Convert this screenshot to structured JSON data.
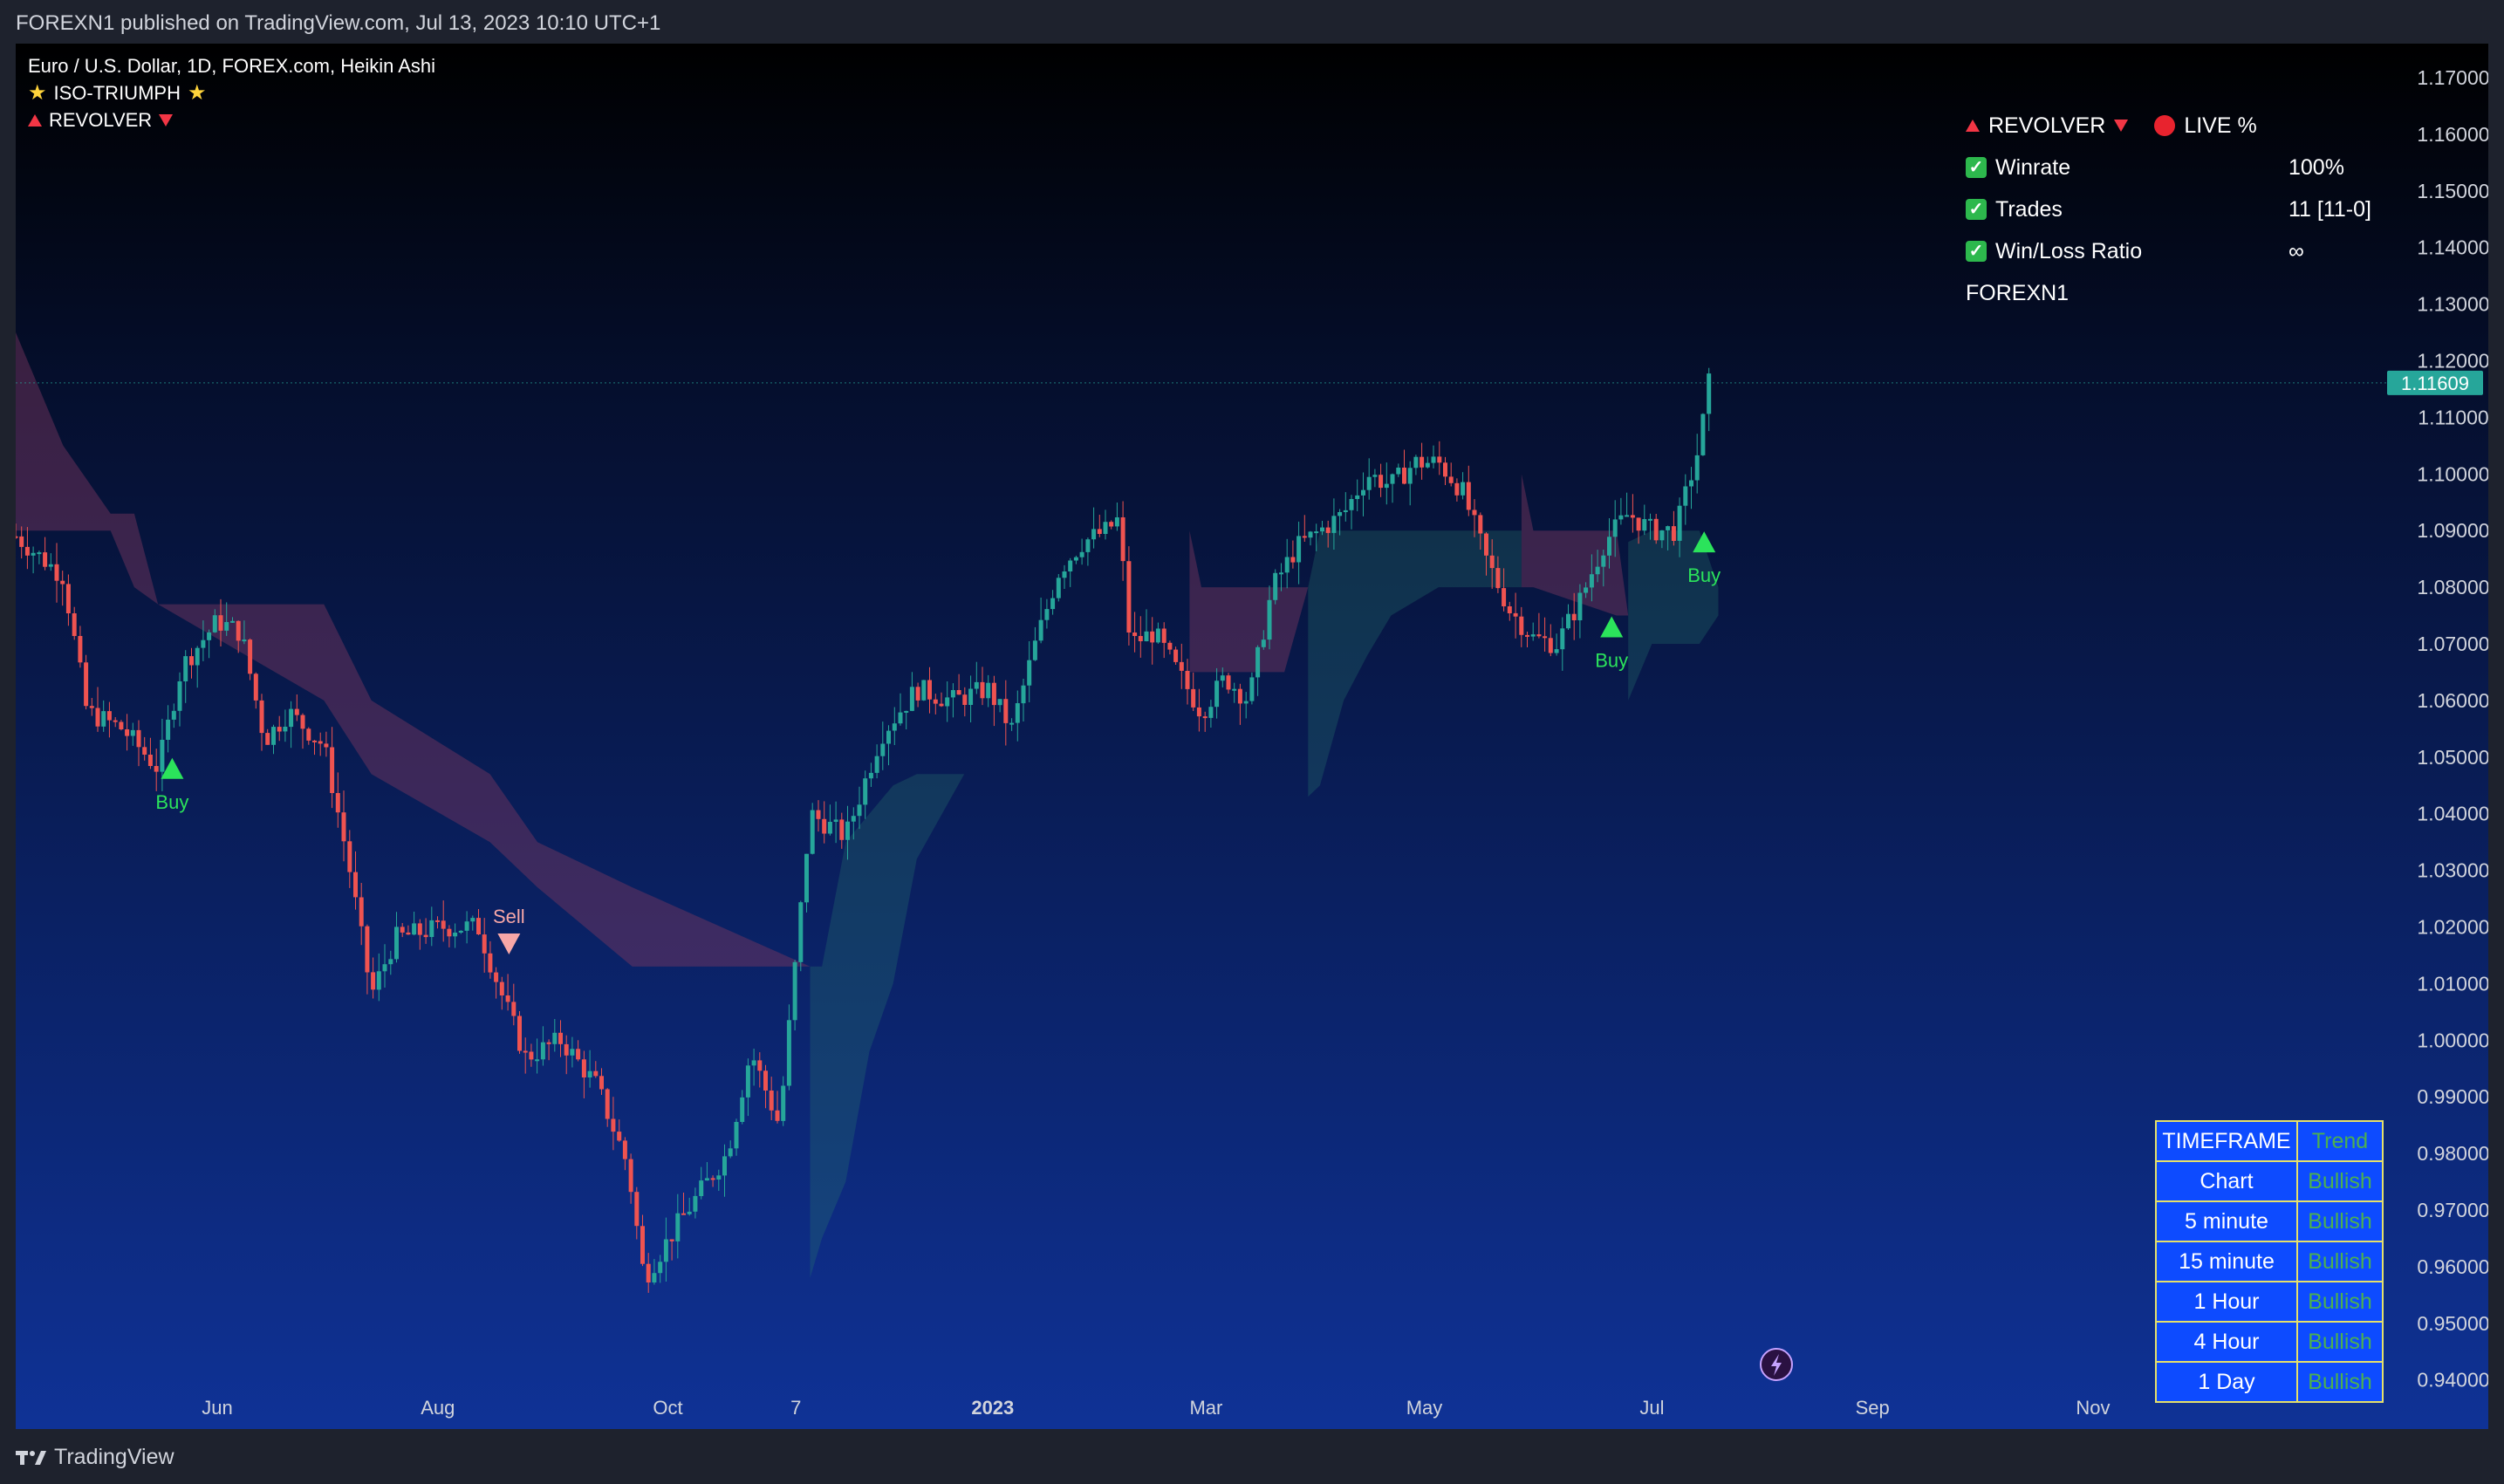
{
  "header": {
    "published": "FOREXN1 published on TradingView.com, Jul 13, 2023 10:10 UTC+1"
  },
  "legend": {
    "symbol": "Euro / U.S. Dollar, 1D, FOREX.com, Heikin Ashi",
    "indicator1": "ISO-TRIUMPH",
    "indicator2": "REVOLVER"
  },
  "stats": {
    "title": "REVOLVER",
    "live_label": "LIVE %",
    "rows": [
      {
        "label": "Winrate",
        "value": "100%"
      },
      {
        "label": "Trades",
        "value": "11 [11-0]"
      },
      {
        "label": "Win/Loss Ratio",
        "value": "∞"
      }
    ],
    "author": "FOREXN1"
  },
  "timeframe_table": {
    "headers": [
      "TIMEFRAME",
      "Trend"
    ],
    "rows": [
      {
        "tf": "Chart",
        "trend": "Bullish"
      },
      {
        "tf": "5 minute",
        "trend": "Bullish"
      },
      {
        "tf": "15 minute",
        "trend": "Bullish"
      },
      {
        "tf": "1 Hour",
        "trend": "Bullish"
      },
      {
        "tf": "4 Hour",
        "trend": "Bullish"
      },
      {
        "tf": "1 Day",
        "trend": "Bullish"
      }
    ]
  },
  "footer": {
    "brand": "TradingView"
  },
  "colors": {
    "up": "#26a69a",
    "down": "#ef5350",
    "buy": "#2be35b",
    "sell": "#f7a7a7",
    "price_label": "#26a69a"
  },
  "chart_data": {
    "type": "candlestick",
    "y_ticks": [
      "1.17000",
      "1.16000",
      "1.15000",
      "1.14000",
      "1.13000",
      "1.12000",
      "1.11000",
      "1.10000",
      "1.09000",
      "1.08000",
      "1.07000",
      "1.06000",
      "1.05000",
      "1.04000",
      "1.03000",
      "1.02000",
      "1.01000",
      "1.00000",
      "0.99000",
      "0.98000",
      "0.97000",
      "0.96000",
      "0.95000",
      "0.94000"
    ],
    "ylim": [
      0.94,
      1.17
    ],
    "last_price": "1.11609",
    "x_labels": [
      {
        "label": "Jun",
        "t": 0.085,
        "bold": false
      },
      {
        "label": "Aug",
        "t": 0.178,
        "bold": false
      },
      {
        "label": "Oct",
        "t": 0.275,
        "bold": false
      },
      {
        "label": "7",
        "t": 0.329,
        "bold": false
      },
      {
        "label": "2023",
        "t": 0.412,
        "bold": true
      },
      {
        "label": "Mar",
        "t": 0.502,
        "bold": false
      },
      {
        "label": "May",
        "t": 0.594,
        "bold": false
      },
      {
        "label": "Jul",
        "t": 0.69,
        "bold": false
      },
      {
        "label": "Sep",
        "t": 0.783,
        "bold": false
      },
      {
        "label": "Nov",
        "t": 0.876,
        "bold": false
      }
    ],
    "price_path": [
      [
        0.0,
        1.089
      ],
      [
        0.02,
        1.082
      ],
      [
        0.03,
        1.058
      ],
      [
        0.045,
        1.055
      ],
      [
        0.06,
        1.048
      ],
      [
        0.07,
        1.066
      ],
      [
        0.085,
        1.074
      ],
      [
        0.095,
        1.072
      ],
      [
        0.105,
        1.053
      ],
      [
        0.115,
        1.058
      ],
      [
        0.13,
        1.052
      ],
      [
        0.14,
        1.032
      ],
      [
        0.15,
        1.008
      ],
      [
        0.16,
        1.018
      ],
      [
        0.18,
        1.02
      ],
      [
        0.195,
        1.02
      ],
      [
        0.205,
        1.008
      ],
      [
        0.215,
        0.997
      ],
      [
        0.23,
        1.0
      ],
      [
        0.245,
        0.992
      ],
      [
        0.258,
        0.978
      ],
      [
        0.265,
        0.958
      ],
      [
        0.28,
        0.968
      ],
      [
        0.29,
        0.974
      ],
      [
        0.3,
        0.98
      ],
      [
        0.31,
        0.998
      ],
      [
        0.322,
        0.985
      ],
      [
        0.335,
        1.04
      ],
      [
        0.35,
        1.036
      ],
      [
        0.365,
        1.054
      ],
      [
        0.38,
        1.062
      ],
      [
        0.395,
        1.06
      ],
      [
        0.41,
        1.062
      ],
      [
        0.42,
        1.055
      ],
      [
        0.43,
        1.07
      ],
      [
        0.44,
        1.083
      ],
      [
        0.45,
        1.088
      ],
      [
        0.46,
        1.09
      ],
      [
        0.465,
        1.092
      ],
      [
        0.47,
        1.07
      ],
      [
        0.48,
        1.072
      ],
      [
        0.49,
        1.065
      ],
      [
        0.5,
        1.058
      ],
      [
        0.51,
        1.064
      ],
      [
        0.52,
        1.06
      ],
      [
        0.53,
        1.08
      ],
      [
        0.54,
        1.087
      ],
      [
        0.55,
        1.09
      ],
      [
        0.56,
        1.093
      ],
      [
        0.57,
        1.1
      ],
      [
        0.58,
        1.098
      ],
      [
        0.59,
        1.102
      ],
      [
        0.6,
        1.102
      ],
      [
        0.61,
        1.097
      ],
      [
        0.62,
        1.085
      ],
      [
        0.63,
        1.076
      ],
      [
        0.64,
        1.071
      ],
      [
        0.65,
        1.07
      ],
      [
        0.66,
        1.078
      ],
      [
        0.67,
        1.088
      ],
      [
        0.68,
        1.093
      ],
      [
        0.69,
        1.09
      ],
      [
        0.7,
        1.09
      ],
      [
        0.71,
        1.105
      ],
      [
        0.714,
        1.116
      ]
    ],
    "bands": [
      {
        "type": "bearish",
        "points": [
          [
            0.0,
            1.125,
            1.09
          ],
          [
            0.01,
            1.115,
            1.09
          ],
          [
            0.02,
            1.105,
            1.09
          ],
          [
            0.04,
            1.093,
            1.09
          ],
          [
            0.05,
            1.093,
            1.08
          ],
          [
            0.06,
            1.077,
            1.077
          ],
          [
            0.13,
            1.077,
            1.06
          ],
          [
            0.15,
            1.06,
            1.047
          ],
          [
            0.2,
            1.047,
            1.035
          ],
          [
            0.22,
            1.035,
            1.027
          ],
          [
            0.26,
            1.027,
            1.013
          ],
          [
            0.335,
            1.013,
            1.013
          ]
        ]
      },
      {
        "type": "bullish",
        "points": [
          [
            0.335,
            1.013,
            0.958
          ],
          [
            0.34,
            1.013,
            0.965
          ],
          [
            0.35,
            1.035,
            0.975
          ],
          [
            0.36,
            1.04,
            0.998
          ],
          [
            0.37,
            1.045,
            1.01
          ],
          [
            0.38,
            1.047,
            1.032
          ],
          [
            0.4,
            1.047,
            1.047
          ],
          [
            0.44,
            1.047,
            1.047
          ],
          [
            0.45,
            1.065,
            1.065
          ],
          [
            0.495,
            1.065,
            1.065
          ]
        ]
      },
      {
        "type": "bearish",
        "points": [
          [
            0.495,
            1.09,
            1.065
          ],
          [
            0.5,
            1.08,
            1.065
          ],
          [
            0.535,
            1.08,
            1.065
          ],
          [
            0.545,
            1.08,
            1.08
          ]
        ]
      },
      {
        "type": "bullish",
        "points": [
          [
            0.545,
            1.08,
            1.043
          ],
          [
            0.55,
            1.09,
            1.045
          ],
          [
            0.56,
            1.09,
            1.06
          ],
          [
            0.57,
            1.09,
            1.068
          ],
          [
            0.58,
            1.09,
            1.075
          ],
          [
            0.6,
            1.09,
            1.08
          ],
          [
            0.635,
            1.09,
            1.08
          ]
        ]
      },
      {
        "type": "bearish",
        "points": [
          [
            0.635,
            1.1,
            1.08
          ],
          [
            0.64,
            1.09,
            1.08
          ],
          [
            0.675,
            1.09,
            1.075
          ],
          [
            0.68,
            1.075,
            1.075
          ]
        ]
      },
      {
        "type": "bullish",
        "points": [
          [
            0.68,
            1.088,
            1.06
          ],
          [
            0.69,
            1.09,
            1.07
          ],
          [
            0.71,
            1.09,
            1.07
          ],
          [
            0.718,
            1.08,
            1.075
          ]
        ]
      }
    ],
    "signals": [
      {
        "type": "Buy",
        "t": 0.066,
        "price": 1.048
      },
      {
        "type": "Sell",
        "t": 0.208,
        "price": 1.017
      },
      {
        "type": "Buy",
        "t": 0.673,
        "price": 1.073
      },
      {
        "type": "Buy",
        "t": 0.712,
        "price": 1.088
      }
    ]
  }
}
